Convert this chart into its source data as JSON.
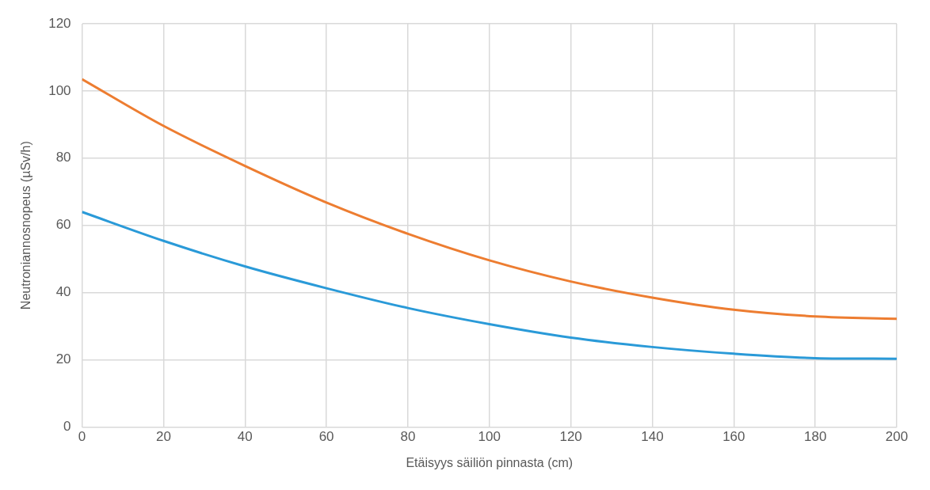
{
  "chart_data": {
    "type": "line",
    "xlabel": "Etäisyys säiliön pinnasta (cm)",
    "ylabel": "Neutroniannosnopeus (µSv/h)",
    "x": [
      0,
      20,
      40,
      60,
      80,
      100,
      120,
      140,
      160,
      180,
      200
    ],
    "series": [
      {
        "color": "#ed7d31",
        "values": [
          103.5,
          89.6,
          77.7,
          66.8,
          57.5,
          49.6,
          43.3,
          38.5,
          34.9,
          32.9,
          32.2
        ]
      },
      {
        "color": "#2a9ad8",
        "values": [
          64,
          55.4,
          47.8,
          41.3,
          35.4,
          30.6,
          26.6,
          23.8,
          21.8,
          20.5,
          20.3
        ]
      }
    ],
    "xlim": [
      0,
      200
    ],
    "xticks": [
      0,
      20,
      40,
      60,
      80,
      100,
      120,
      140,
      160,
      180,
      200
    ],
    "ylim": [
      0,
      120
    ],
    "yticks": [
      0,
      20,
      40,
      60,
      80,
      100,
      120
    ],
    "grid": true,
    "legend": false,
    "marker": "none",
    "line_style": "solid"
  }
}
